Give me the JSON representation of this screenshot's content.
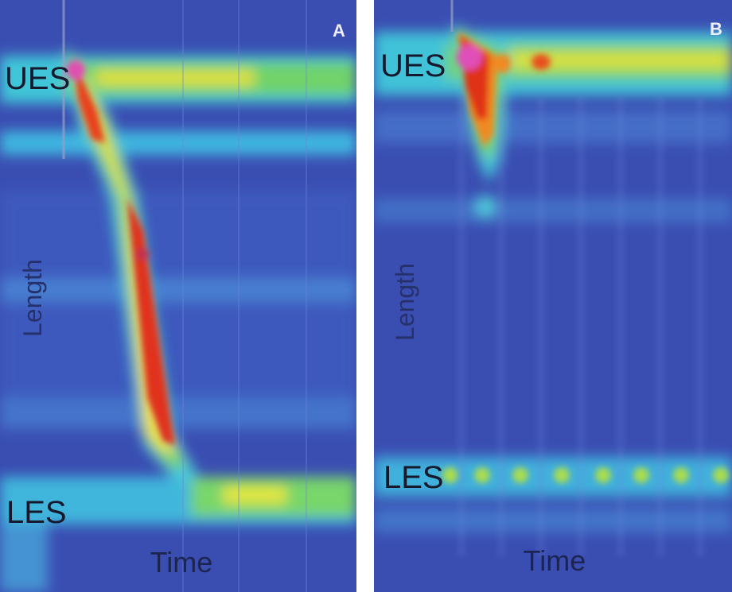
{
  "panels": [
    {
      "label": "A",
      "upper": "UES",
      "lower": "LES",
      "y_label": "Length",
      "x_label": "Time"
    },
    {
      "label": "B",
      "upper": "UES",
      "lower": "LES",
      "y_label": "Length",
      "x_label": "Time"
    }
  ]
}
